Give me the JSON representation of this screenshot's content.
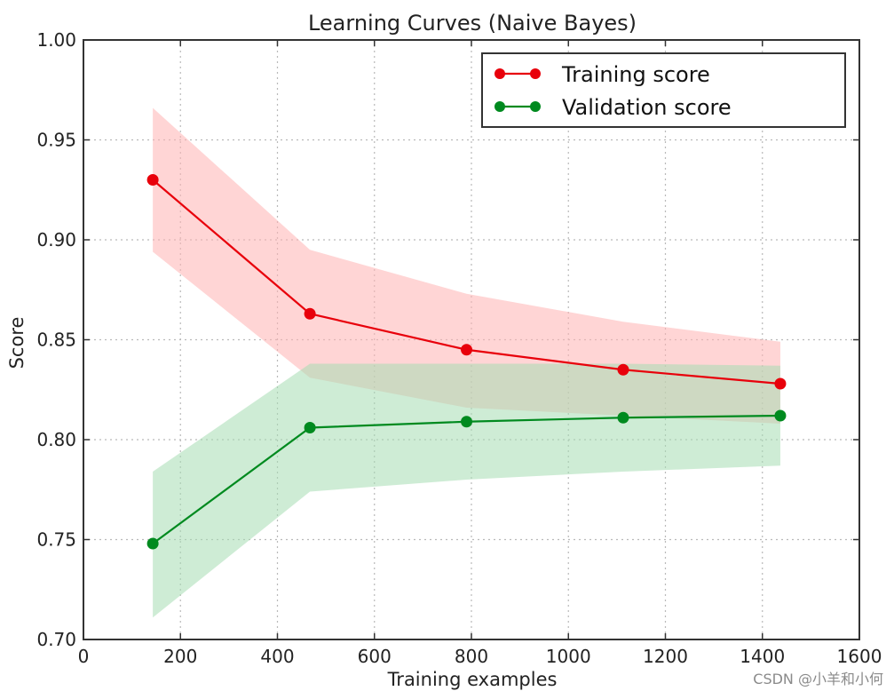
{
  "chart_data": {
    "type": "line",
    "title": "Learning Curves (Naive Bayes)",
    "xlabel": "Training examples",
    "ylabel": "Score",
    "xlim": [
      0,
      1600
    ],
    "ylim": [
      0.7,
      1.0
    ],
    "xticks": [
      "0",
      "200",
      "400",
      "600",
      "800",
      "1000",
      "1200",
      "1400",
      "1600"
    ],
    "yticks": [
      "0.70",
      "0.75",
      "0.80",
      "0.85",
      "0.90",
      "0.95",
      "1.00"
    ],
    "grid": true,
    "legend_position": "top-right",
    "x": [
      143,
      467,
      790,
      1113,
      1437
    ],
    "series": [
      {
        "name": "Training score",
        "color": "#e8000b",
        "band_color": "#ffb3b3",
        "values": [
          0.93,
          0.863,
          0.845,
          0.835,
          0.828
        ],
        "lower": [
          0.894,
          0.831,
          0.816,
          0.812,
          0.808
        ],
        "upper": [
          0.966,
          0.895,
          0.873,
          0.859,
          0.849
        ]
      },
      {
        "name": "Validation score",
        "color": "#008a1f",
        "band_color": "#a6dcb3",
        "values": [
          0.748,
          0.806,
          0.809,
          0.811,
          0.812
        ],
        "lower": [
          0.711,
          0.774,
          0.78,
          0.784,
          0.787
        ],
        "upper": [
          0.784,
          0.838,
          0.838,
          0.838,
          0.837
        ]
      }
    ]
  },
  "watermark": "CSDN @小羊和小何"
}
